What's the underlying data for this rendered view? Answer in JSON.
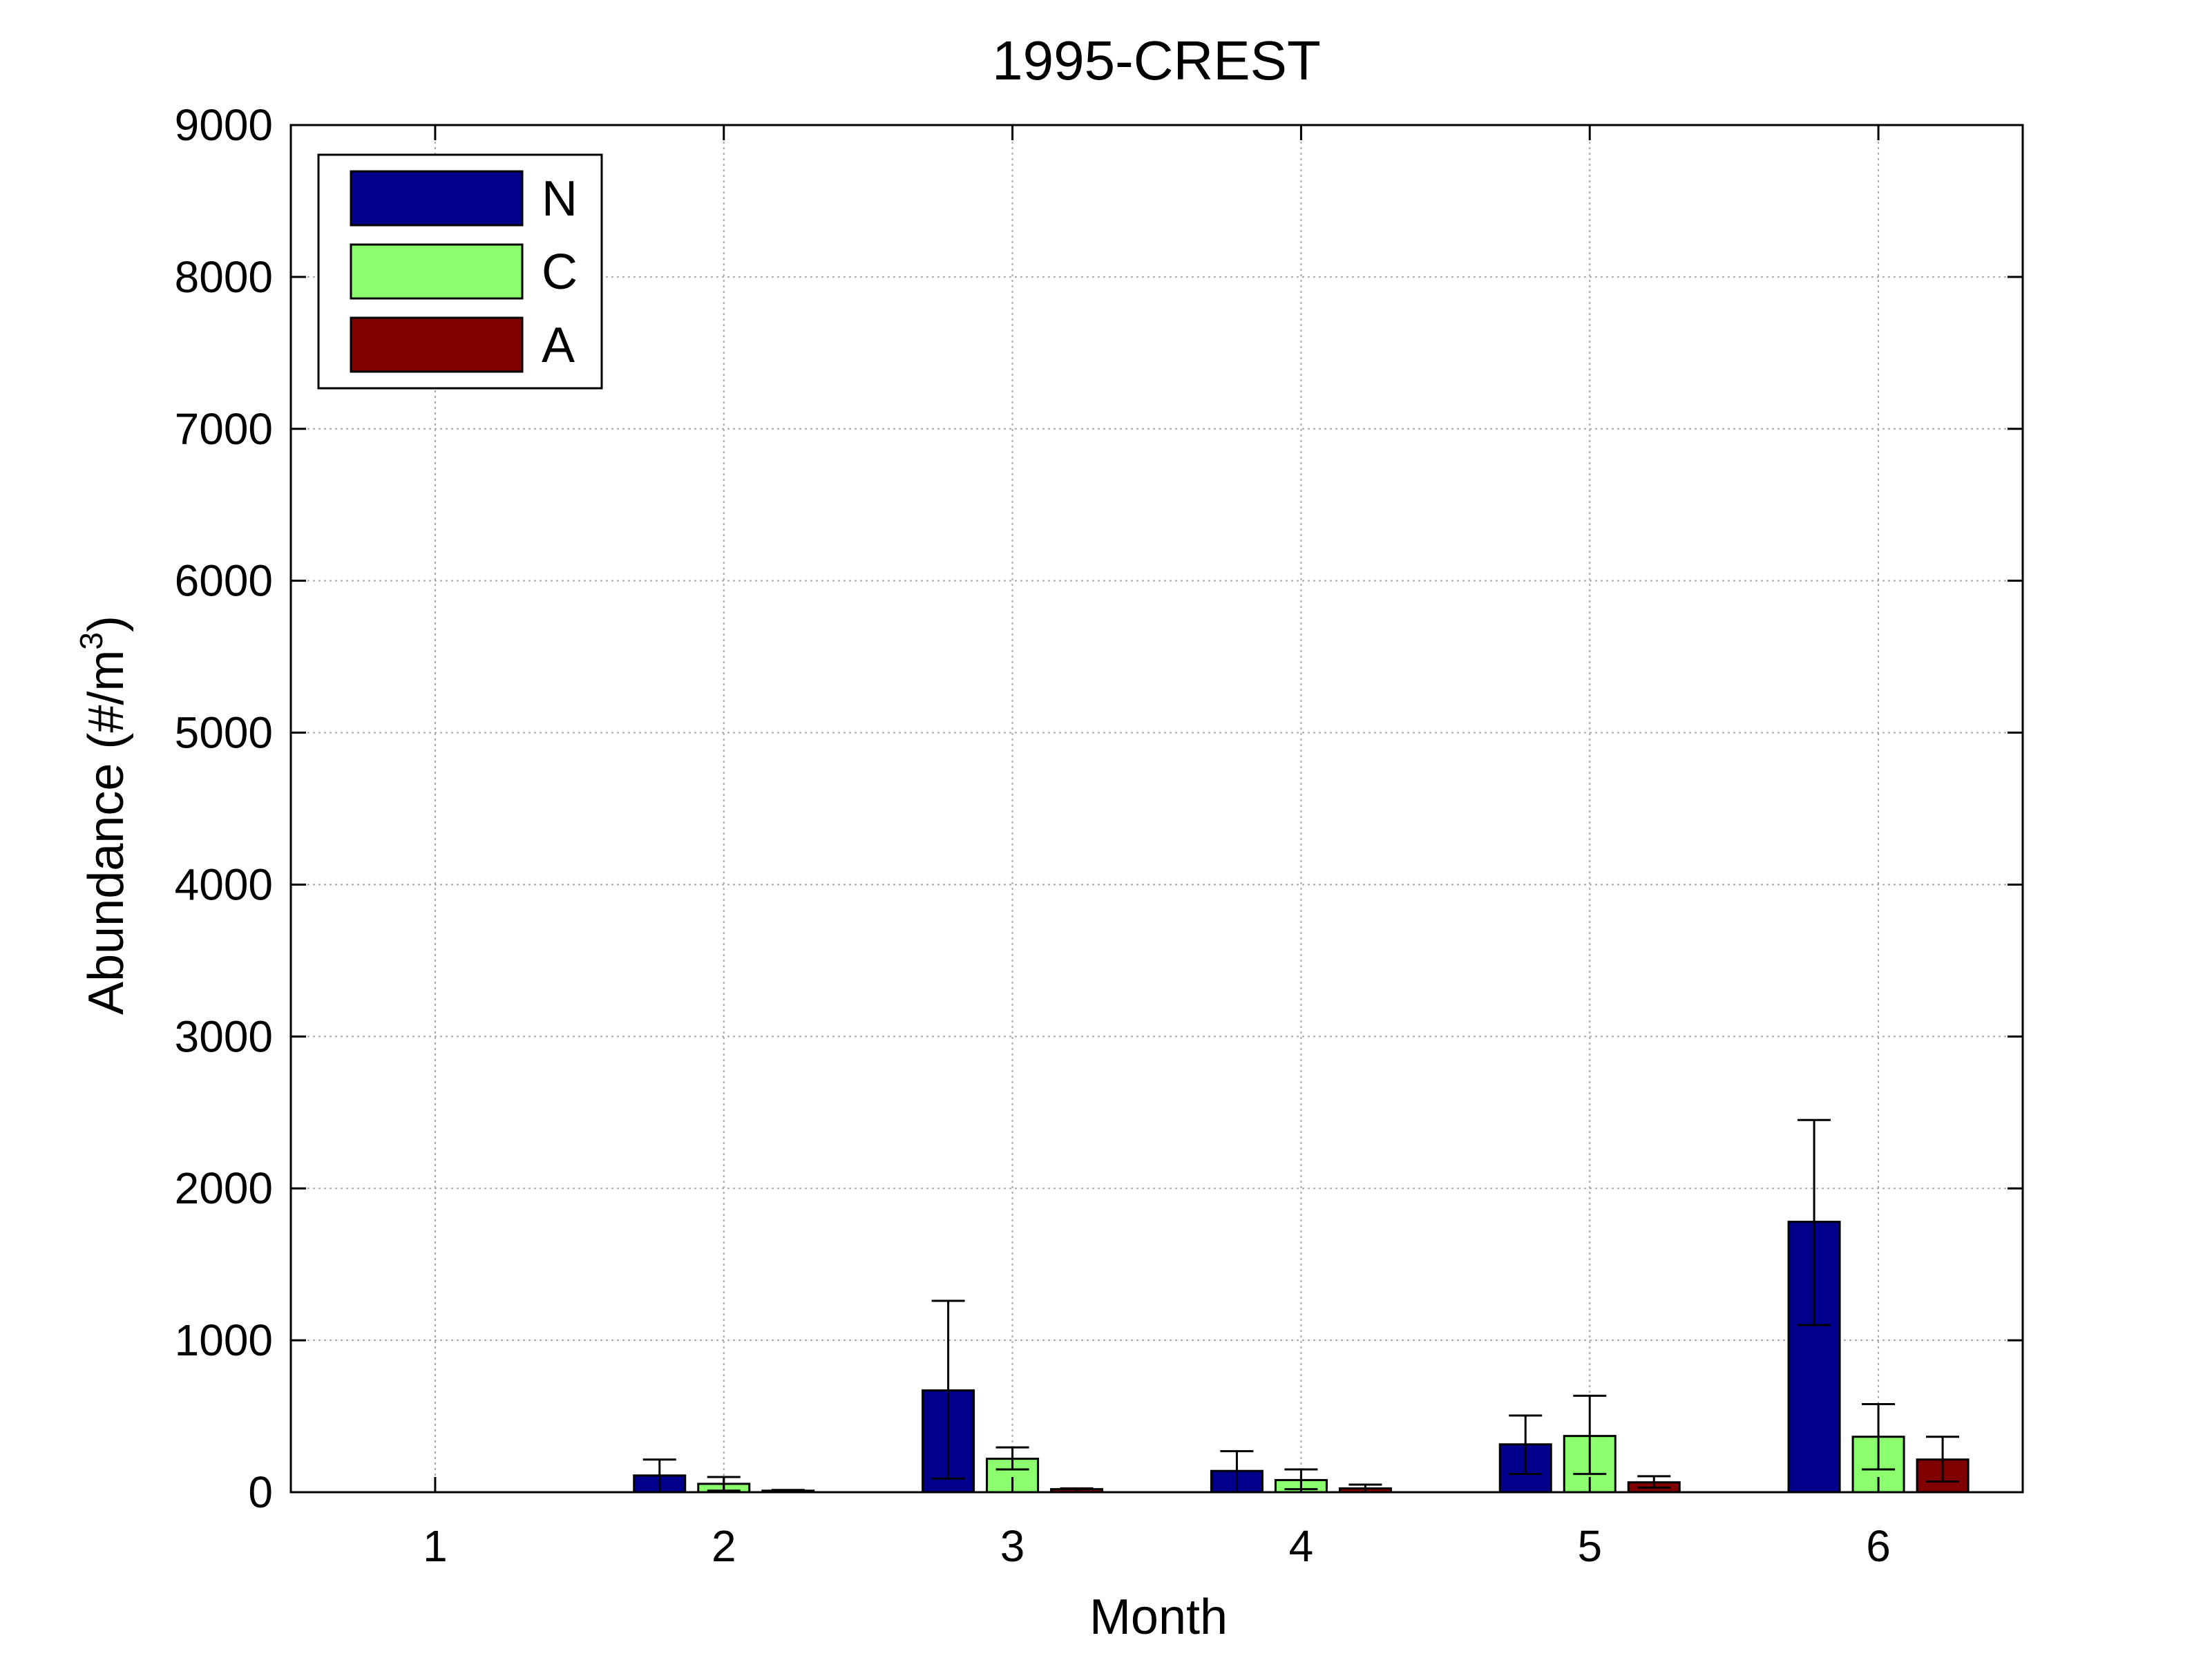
{
  "chart_data": {
    "type": "bar",
    "title": "1995-CREST",
    "xlabel": "Month",
    "ylabel_main": "Abundance (#/m",
    "ylabel_sup": "3",
    "ylabel_end": ")",
    "categories": [
      "1",
      "2",
      "3",
      "4",
      "5",
      "6"
    ],
    "ylim": [
      0,
      9000
    ],
    "yticks": [
      0,
      1000,
      2000,
      3000,
      4000,
      5000,
      6000,
      7000,
      8000,
      9000
    ],
    "grid": true,
    "legend_position": "top-left",
    "series": [
      {
        "name": "N",
        "color": "#00008b",
        "values": [
          0,
          110,
          670,
          140,
          315,
          1780
        ],
        "err_low": [
          0,
          0,
          90,
          0,
          120,
          1100
        ],
        "err_high": [
          0,
          215,
          1260,
          270,
          505,
          2450
        ]
      },
      {
        "name": "C",
        "color": "#8cff6e",
        "values": [
          0,
          55,
          220,
          80,
          370,
          365
        ],
        "err_low": [
          0,
          10,
          150,
          20,
          120,
          150
        ],
        "err_high": [
          0,
          100,
          295,
          150,
          635,
          580
        ]
      },
      {
        "name": "A",
        "color": "#800000",
        "values": [
          0,
          10,
          20,
          25,
          65,
          215
        ],
        "err_low": [
          0,
          0,
          0,
          0,
          30,
          70
        ],
        "err_high": [
          0,
          15,
          25,
          50,
          105,
          365
        ]
      }
    ]
  }
}
